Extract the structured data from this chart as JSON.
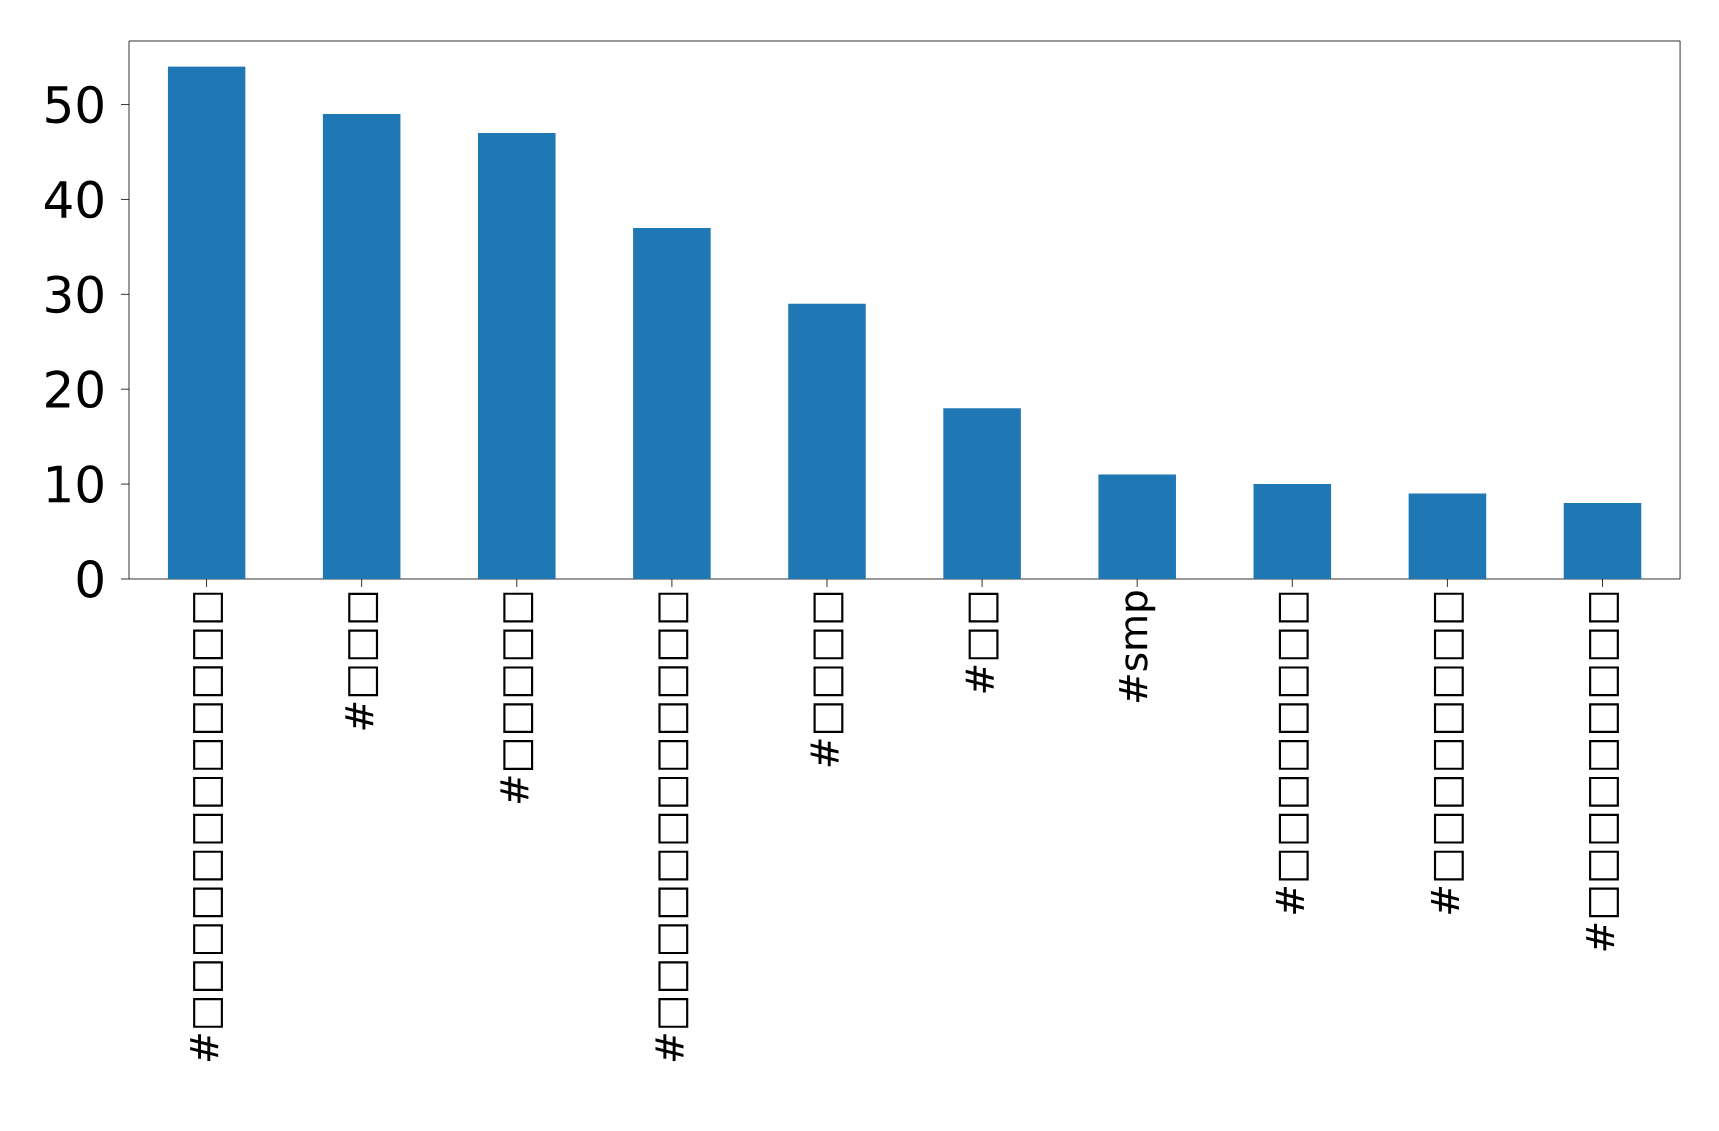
{
  "chart_data": {
    "type": "bar",
    "categories": [
      "#□□□□□□□□□□□□",
      "#□□□",
      "#□□□□□",
      "#□□□□□□□□□□□□",
      "#□□□□",
      "#□□",
      "#smp",
      "#□□□□□□□□",
      "#□□□□□□□□",
      "#□□□□□□□□□"
    ],
    "values": [
      54,
      49,
      47,
      37,
      29,
      18,
      11,
      10,
      9,
      8
    ],
    "color": "#1f77b4",
    "ylim": [
      0,
      56.7
    ],
    "yticks": [
      0,
      10,
      20,
      30,
      40,
      50
    ]
  }
}
